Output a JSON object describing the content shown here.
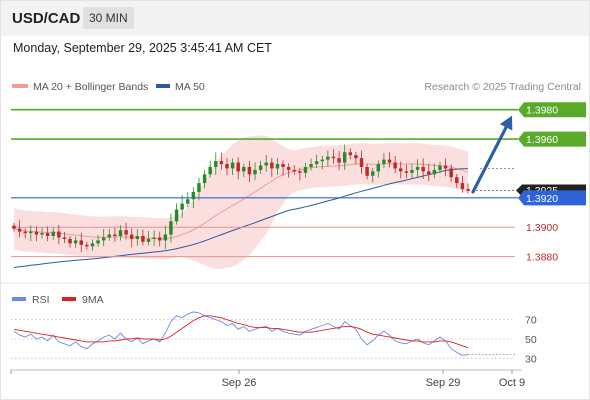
{
  "header": {
    "pair": "USD/CAD",
    "timeframe": "30 MIN"
  },
  "datetime": "Monday, September 29, 2025 3:45:41 AM CET",
  "legend": {
    "items": [
      {
        "label": "MA 20 + Bollinger Bands",
        "color": "#f29b92"
      },
      {
        "label": "MA 50",
        "color": "#2b5b9e"
      }
    ],
    "source": "Research © 2025 Trading Central"
  },
  "colors": {
    "up_candle": "#2a8a2a",
    "down_candle": "#c0282c",
    "resistance": "#5aaa2a",
    "pivot": "#2f64d8",
    "support": "#e8908f",
    "bollinger_fill": "#fbdcdc",
    "arrow": "#2d5fa6",
    "last_price_tag": "#222222"
  },
  "chart_data": [
    {
      "type": "candlestick",
      "ylim": [
        1.3862,
        1.399
      ],
      "price_scale": "hidden",
      "x_ticks": [
        "Sep 26",
        "Sep 29",
        "Oct 9"
      ],
      "levels": [
        {
          "value": 1.398,
          "label": "1.3980",
          "role": "resistance",
          "style": "tag"
        },
        {
          "value": 1.396,
          "label": "1.3960",
          "role": "resistance",
          "style": "tag"
        },
        {
          "value": 1.392,
          "label": "1.3920",
          "role": "pivot",
          "style": "tag"
        },
        {
          "value": 1.39,
          "label": "1.3900",
          "role": "support",
          "style": "text"
        },
        {
          "value": 1.388,
          "label": "1.3880",
          "role": "support",
          "style": "text"
        }
      ],
      "last_price": {
        "value": 1.3925,
        "label": "1.3925"
      },
      "forecast_arrow": {
        "from": 1.3924,
        "to": 1.398
      },
      "closes": [
        1.3899,
        1.3897,
        1.3896,
        1.3897,
        1.3895,
        1.3896,
        1.3894,
        1.3897,
        1.3893,
        1.3892,
        1.3889,
        1.3891,
        1.3888,
        1.3887,
        1.3889,
        1.3891,
        1.3893,
        1.3895,
        1.3894,
        1.3898,
        1.3895,
        1.3892,
        1.3894,
        1.389,
        1.3892,
        1.3893,
        1.3891,
        1.3895,
        1.3904,
        1.3912,
        1.3916,
        1.3919,
        1.3924,
        1.393,
        1.3936,
        1.3941,
        1.3945,
        1.3943,
        1.394,
        1.3944,
        1.3938,
        1.3941,
        1.3936,
        1.3939,
        1.3942,
        1.3944,
        1.394,
        1.3943,
        1.3941,
        1.3939,
        1.3938,
        1.3937,
        1.3941,
        1.3943,
        1.3945,
        1.3946,
        1.3948,
        1.3947,
        1.3944,
        1.3951,
        1.3949,
        1.3947,
        1.3941,
        1.3935,
        1.3938,
        1.3943,
        1.3946,
        1.3944,
        1.394,
        1.3938,
        1.3937,
        1.3939,
        1.3941,
        1.3938,
        1.3936,
        1.3939,
        1.3942,
        1.394,
        1.3934,
        1.393,
        1.3926,
        1.3925
      ]
    },
    {
      "type": "line",
      "indicator": "RSI",
      "legend": [
        {
          "name": "RSI",
          "color": "#6a8ce0"
        },
        {
          "name": "9MA",
          "color": "#e02020"
        }
      ],
      "ylim": [
        20,
        80
      ],
      "y_ticks": [
        70,
        50,
        30
      ],
      "series": [
        {
          "name": "RSI",
          "values": [
            58,
            54,
            52,
            55,
            50,
            52,
            48,
            54,
            47,
            45,
            43,
            47,
            42,
            40,
            45,
            48,
            52,
            54,
            50,
            56,
            50,
            47,
            51,
            45,
            48,
            50,
            47,
            56,
            68,
            74,
            72,
            76,
            78,
            77,
            74,
            72,
            70,
            68,
            64,
            66,
            60,
            63,
            58,
            60,
            62,
            63,
            58,
            61,
            58,
            56,
            55,
            54,
            58,
            60,
            62,
            64,
            66,
            63,
            60,
            68,
            64,
            60,
            50,
            44,
            48,
            54,
            58,
            54,
            48,
            46,
            45,
            48,
            50,
            46,
            44,
            48,
            52,
            48,
            40,
            36,
            33,
            34
          ]
        },
        {
          "name": "9MA",
          "values": [
            60,
            59,
            58,
            57,
            56,
            55,
            54,
            53,
            52,
            51,
            50,
            49,
            48,
            47,
            47,
            47,
            47,
            48,
            48,
            49,
            50,
            50,
            51,
            50,
            50,
            50,
            49,
            50,
            53,
            57,
            61,
            65,
            69,
            72,
            74,
            74,
            73,
            72,
            70,
            68,
            66,
            65,
            63,
            62,
            62,
            62,
            61,
            61,
            60,
            59,
            58,
            57,
            57,
            57,
            58,
            59,
            60,
            61,
            62,
            63,
            63,
            62,
            60,
            57,
            55,
            54,
            53,
            52,
            51,
            50,
            49,
            48,
            48,
            47,
            47,
            47,
            48,
            48,
            47,
            45,
            43,
            41
          ]
        }
      ]
    }
  ]
}
